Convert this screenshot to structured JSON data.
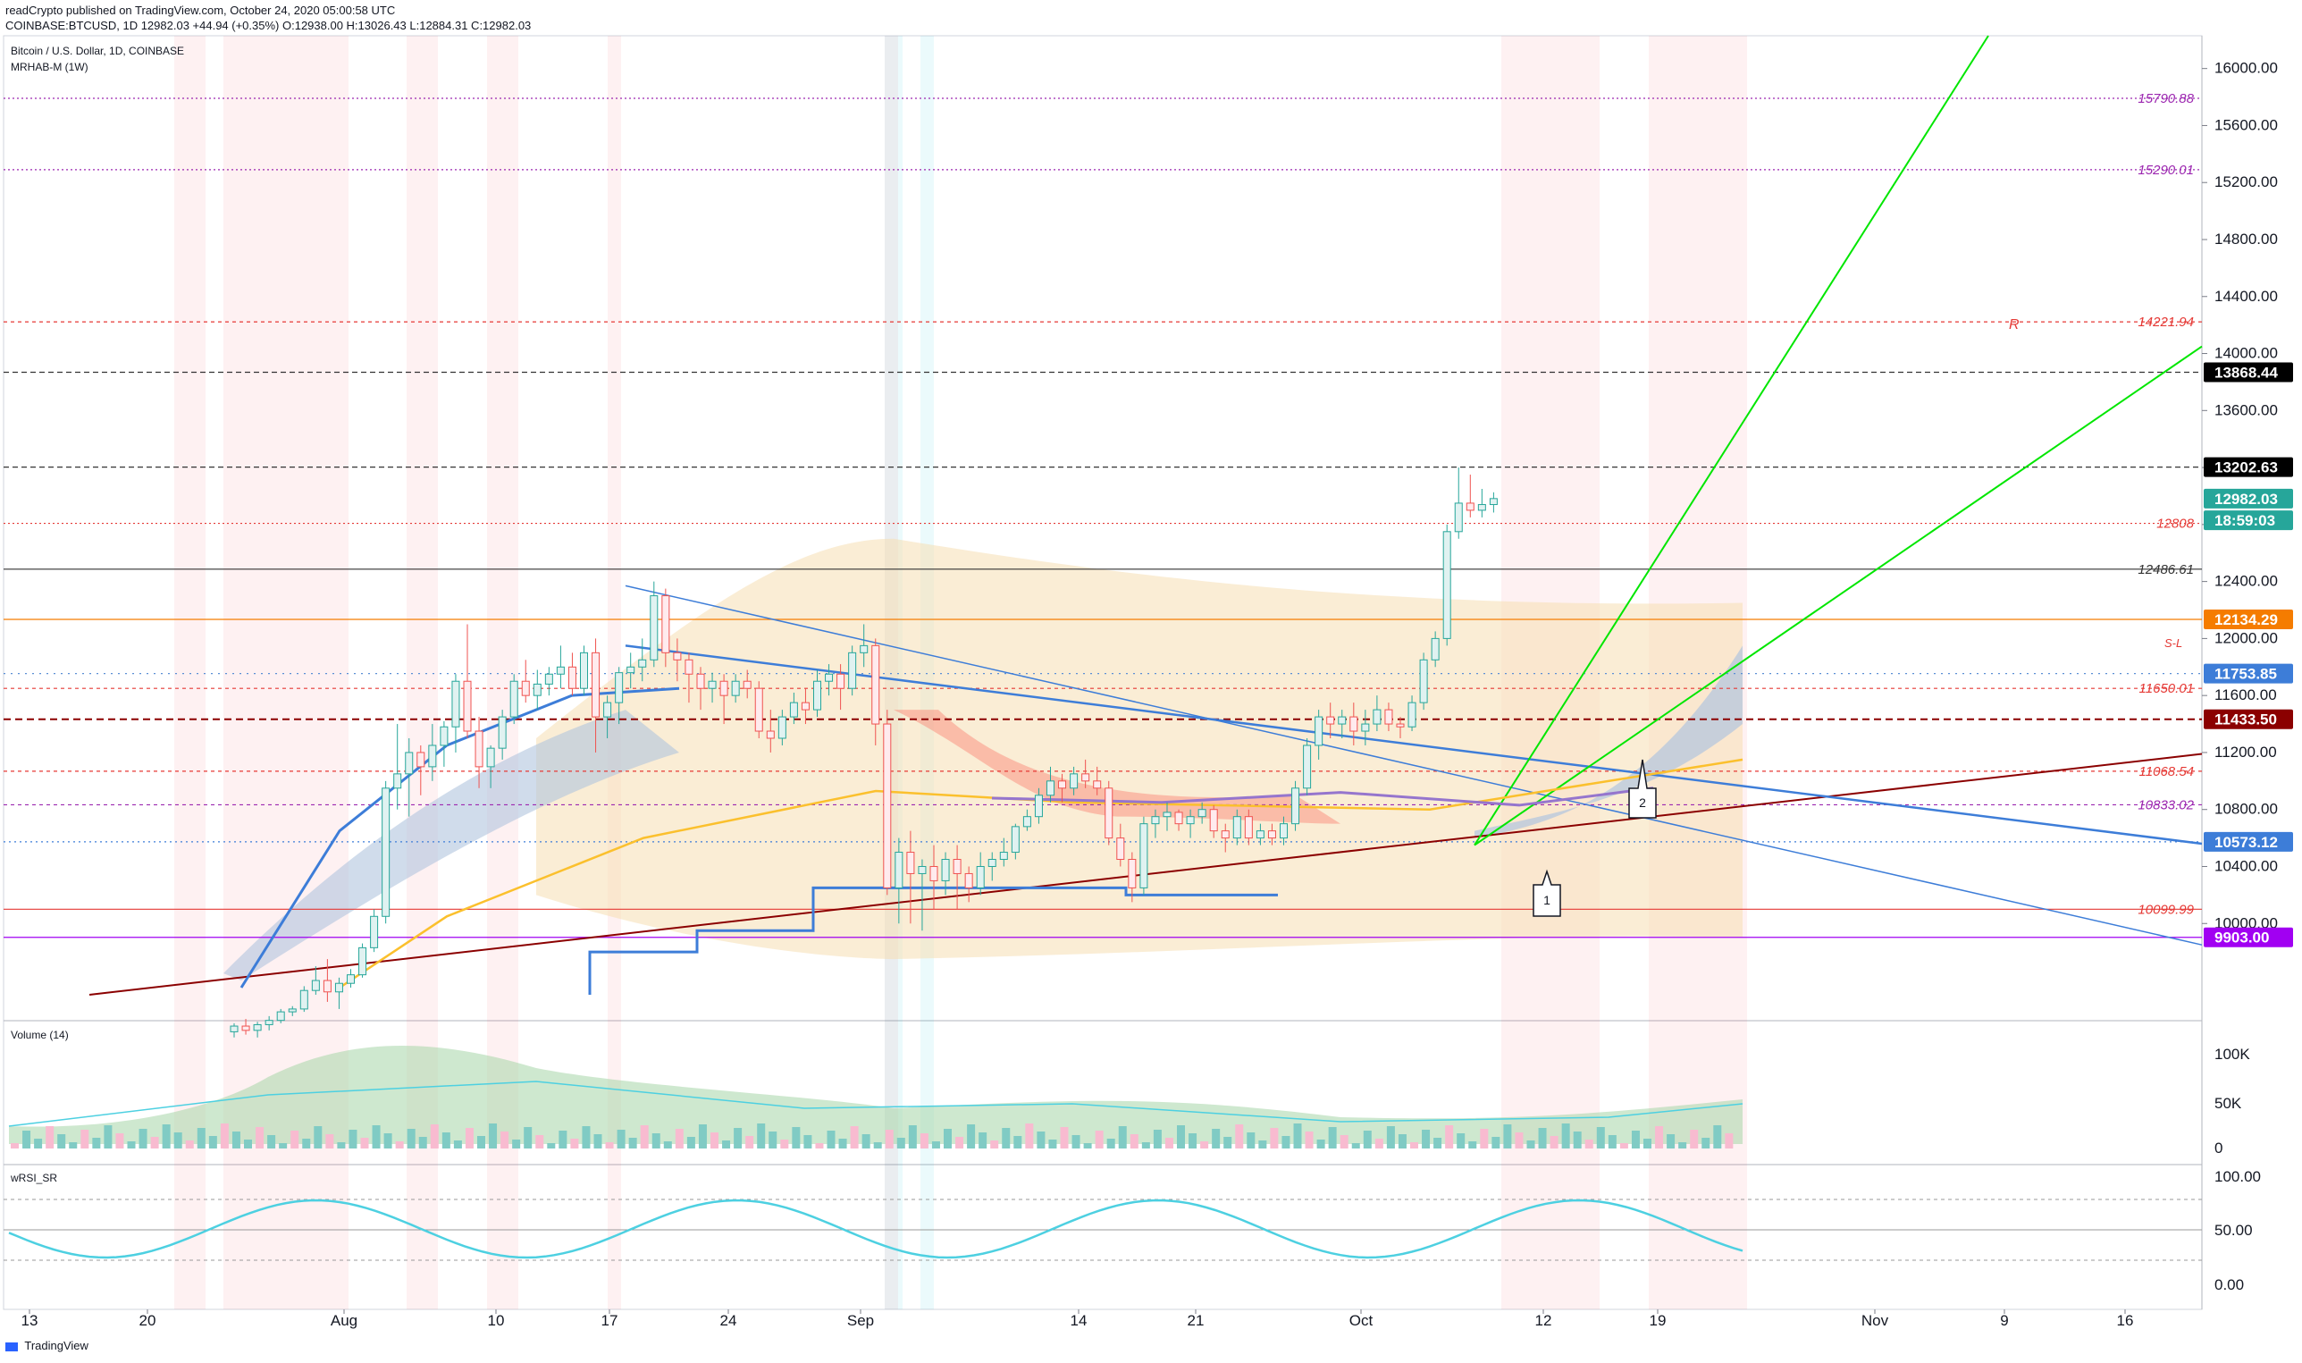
{
  "header": {
    "line1": "readCrypto published on TradingView.com, October 24, 2020 05:00:58 UTC",
    "line2": "COINBASE:BTCUSD, 1D  12982.03  +44.94 (+0.35%)  O:12938.00  H:13026.43  L:12884.31  C:12982.03"
  },
  "main": {
    "title": "Bitcoin / U.S. Dollar, 1D, COINBASE",
    "indicator": "MRHAB-M (1W)",
    "annotation_r": "R",
    "annotation_sl": "S-L",
    "marker1": "1",
    "marker2": "2"
  },
  "volume_pane": {
    "title": "Volume (14)"
  },
  "rsi_pane": {
    "title": "wRSI_SR"
  },
  "footer": {
    "brand": "TradingView"
  },
  "colors": {
    "up": "#26a69a",
    "down": "#ef5350",
    "green_line": "#00e600",
    "blue_line": "#3d7dd8",
    "dark_red_line": "#8b0000",
    "purple_line": "#9400d3"
  },
  "chart_data": {
    "type": "candlestick",
    "price_axis": {
      "ticks": [
        "16000.00",
        "15600.00",
        "15200.00",
        "14800.00",
        "14400.00",
        "14000.00",
        "13600.00",
        "13200.00",
        "12800.00",
        "12400.00",
        "12000.00",
        "11600.00",
        "11200.00",
        "10800.00",
        "10400.00",
        "10000.00"
      ],
      "range": [
        9700,
        16200
      ]
    },
    "time_axis": {
      "ticks": [
        "13",
        "20",
        "Aug",
        "10",
        "17",
        "24",
        "Sep",
        "14",
        "21",
        "Oct",
        "12",
        "19",
        "Nov",
        "9",
        "16"
      ]
    },
    "price_labels": [
      {
        "label": "15790.88",
        "value": 15790.88,
        "color": "#9c27b0",
        "style": "right-text"
      },
      {
        "label": "15290.01",
        "value": 15290.01,
        "color": "#9c27b0",
        "style": "right-text"
      },
      {
        "label": "14221.94",
        "value": 14221.94,
        "color": "#e53935",
        "style": "right-text"
      },
      {
        "label": "13868.44",
        "value": 13868.44,
        "color": "#000000",
        "style": "box"
      },
      {
        "label": "13202.63",
        "value": 13202.63,
        "color": "#000000",
        "style": "box"
      },
      {
        "label": "12982.03",
        "value": 12982.03,
        "color": "#26a69a",
        "style": "box"
      },
      {
        "label": "18:59:03",
        "value": 12830,
        "color": "#26a69a",
        "style": "box"
      },
      {
        "label": "12808",
        "value": 12808,
        "color": "#e53935",
        "style": "right-text"
      },
      {
        "label": "12486.61",
        "value": 12486.61,
        "color": "#333333",
        "style": "right-text"
      },
      {
        "label": "12134.29",
        "value": 12134.29,
        "color": "#f57c00",
        "style": "box"
      },
      {
        "label": "11753.85",
        "value": 11753.85,
        "color": "#3d7dd8",
        "style": "box"
      },
      {
        "label": "11650.01",
        "value": 11650.01,
        "color": "#e53935",
        "style": "right-text"
      },
      {
        "label": "11433.50",
        "value": 11433.5,
        "color": "#8b0000",
        "style": "box"
      },
      {
        "label": "11068.54",
        "value": 11068.54,
        "color": "#e53935",
        "style": "right-text"
      },
      {
        "label": "10833.02",
        "value": 10833.02,
        "color": "#9c27b0",
        "style": "right-text"
      },
      {
        "label": "10573.12",
        "value": 10573.12,
        "color": "#3d7dd8",
        "style": "box"
      },
      {
        "label": "10099.99",
        "value": 10099.99,
        "color": "#e53935",
        "style": "right-text"
      },
      {
        "label": "9903.00",
        "value": 9903.0,
        "color": "#a100f2",
        "style": "box"
      }
    ],
    "candles": [
      [
        9240,
        9300,
        9200,
        9280
      ],
      [
        9280,
        9330,
        9220,
        9250
      ],
      [
        9250,
        9310,
        9200,
        9290
      ],
      [
        9290,
        9350,
        9250,
        9320
      ],
      [
        9320,
        9400,
        9300,
        9380
      ],
      [
        9380,
        9420,
        9350,
        9400
      ],
      [
        9400,
        9560,
        9380,
        9530
      ],
      [
        9530,
        9700,
        9500,
        9600
      ],
      [
        9600,
        9750,
        9450,
        9520
      ],
      [
        9520,
        9620,
        9400,
        9580
      ],
      [
        9580,
        9680,
        9550,
        9640
      ],
      [
        9640,
        9860,
        9620,
        9830
      ],
      [
        9830,
        10100,
        9800,
        10050
      ],
      [
        10050,
        11000,
        10000,
        10950
      ],
      [
        10950,
        11400,
        10800,
        11050
      ],
      [
        11050,
        11300,
        10750,
        11200
      ],
      [
        11200,
        11250,
        10900,
        11100
      ],
      [
        11100,
        11400,
        11000,
        11250
      ],
      [
        11250,
        11420,
        11100,
        11380
      ],
      [
        11380,
        11750,
        11200,
        11700
      ],
      [
        11700,
        12100,
        11300,
        11350
      ],
      [
        11350,
        11450,
        10950,
        11100
      ],
      [
        11100,
        11250,
        10950,
        11230
      ],
      [
        11230,
        11500,
        11150,
        11450
      ],
      [
        11450,
        11750,
        11400,
        11700
      ],
      [
        11700,
        11850,
        11550,
        11600
      ],
      [
        11600,
        11780,
        11500,
        11680
      ],
      [
        11680,
        11800,
        11600,
        11750
      ],
      [
        11750,
        11950,
        11650,
        11800
      ],
      [
        11800,
        11900,
        11600,
        11650
      ],
      [
        11650,
        11950,
        11600,
        11900
      ],
      [
        11900,
        12000,
        11200,
        11450
      ],
      [
        11450,
        11600,
        11300,
        11550
      ],
      [
        11550,
        11800,
        11400,
        11760
      ],
      [
        11760,
        11900,
        11650,
        11800
      ],
      [
        11800,
        12000,
        11700,
        11850
      ],
      [
        11850,
        12400,
        11800,
        12300
      ],
      [
        12300,
        12350,
        11800,
        11900
      ],
      [
        11900,
        12000,
        11700,
        11850
      ],
      [
        11850,
        11900,
        11550,
        11750
      ],
      [
        11750,
        11800,
        11500,
        11650
      ],
      [
        11650,
        11760,
        11550,
        11700
      ],
      [
        11700,
        11750,
        11400,
        11600
      ],
      [
        11600,
        11750,
        11550,
        11700
      ],
      [
        11700,
        11780,
        11580,
        11650
      ],
      [
        11650,
        11700,
        11300,
        11350
      ],
      [
        11350,
        11500,
        11200,
        11300
      ],
      [
        11300,
        11500,
        11250,
        11450
      ],
      [
        11450,
        11620,
        11400,
        11550
      ],
      [
        11550,
        11650,
        11400,
        11500
      ],
      [
        11500,
        11780,
        11450,
        11700
      ],
      [
        11700,
        11820,
        11600,
        11750
      ],
      [
        11750,
        11820,
        11500,
        11650
      ],
      [
        11650,
        11950,
        11600,
        11900
      ],
      [
        11900,
        12100,
        11800,
        11950
      ],
      [
        11950,
        12000,
        11250,
        11400
      ],
      [
        11400,
        11500,
        10200,
        10250
      ],
      [
        10250,
        10600,
        10000,
        10500
      ],
      [
        10500,
        10650,
        10000,
        10350
      ],
      [
        10350,
        10450,
        9950,
        10400
      ],
      [
        10400,
        10550,
        10100,
        10300
      ],
      [
        10300,
        10500,
        10200,
        10450
      ],
      [
        10450,
        10550,
        10100,
        10350
      ],
      [
        10350,
        10400,
        10150,
        10250
      ],
      [
        10250,
        10500,
        10200,
        10400
      ],
      [
        10400,
        10500,
        10300,
        10450
      ],
      [
        10450,
        10600,
        10400,
        10500
      ],
      [
        10500,
        10700,
        10450,
        10680
      ],
      [
        10680,
        10800,
        10650,
        10750
      ],
      [
        10750,
        10950,
        10700,
        10900
      ],
      [
        10900,
        11100,
        10850,
        11000
      ],
      [
        11000,
        11050,
        10850,
        10950
      ],
      [
        10950,
        11100,
        10900,
        11050
      ],
      [
        11050,
        11150,
        10950,
        11000
      ],
      [
        11000,
        11100,
        10900,
        10950
      ],
      [
        10950,
        11000,
        10550,
        10600
      ],
      [
        10600,
        10700,
        10400,
        10450
      ],
      [
        10450,
        10500,
        10150,
        10250
      ],
      [
        10250,
        10750,
        10200,
        10700
      ],
      [
        10700,
        10800,
        10600,
        10750
      ],
      [
        10750,
        10850,
        10650,
        10780
      ],
      [
        10780,
        10800,
        10650,
        10700
      ],
      [
        10700,
        10800,
        10600,
        10750
      ],
      [
        10750,
        10850,
        10700,
        10800
      ],
      [
        10800,
        10830,
        10600,
        10650
      ],
      [
        10650,
        10700,
        10500,
        10600
      ],
      [
        10600,
        10800,
        10550,
        10750
      ],
      [
        10750,
        10800,
        10550,
        10600
      ],
      [
        10600,
        10700,
        10550,
        10650
      ],
      [
        10650,
        10700,
        10550,
        10600
      ],
      [
        10600,
        10750,
        10550,
        10700
      ],
      [
        10700,
        11000,
        10650,
        10950
      ],
      [
        10950,
        11300,
        10900,
        11250
      ],
      [
        11250,
        11500,
        11150,
        11450
      ],
      [
        11450,
        11550,
        11300,
        11400
      ],
      [
        11400,
        11500,
        11300,
        11450
      ],
      [
        11450,
        11550,
        11250,
        11350
      ],
      [
        11350,
        11500,
        11250,
        11400
      ],
      [
        11400,
        11600,
        11350,
        11500
      ],
      [
        11500,
        11550,
        11350,
        11400
      ],
      [
        11400,
        11450,
        11300,
        11380
      ],
      [
        11380,
        11600,
        11350,
        11550
      ],
      [
        11550,
        11900,
        11500,
        11850
      ],
      [
        11850,
        12050,
        11800,
        12000
      ],
      [
        12000,
        12800,
        11950,
        12750
      ],
      [
        12750,
        13200,
        12700,
        12950
      ],
      [
        12950,
        13150,
        12850,
        12900
      ],
      [
        12900,
        13050,
        12850,
        12940
      ],
      [
        12940,
        13026,
        12884,
        12982
      ]
    ]
  }
}
